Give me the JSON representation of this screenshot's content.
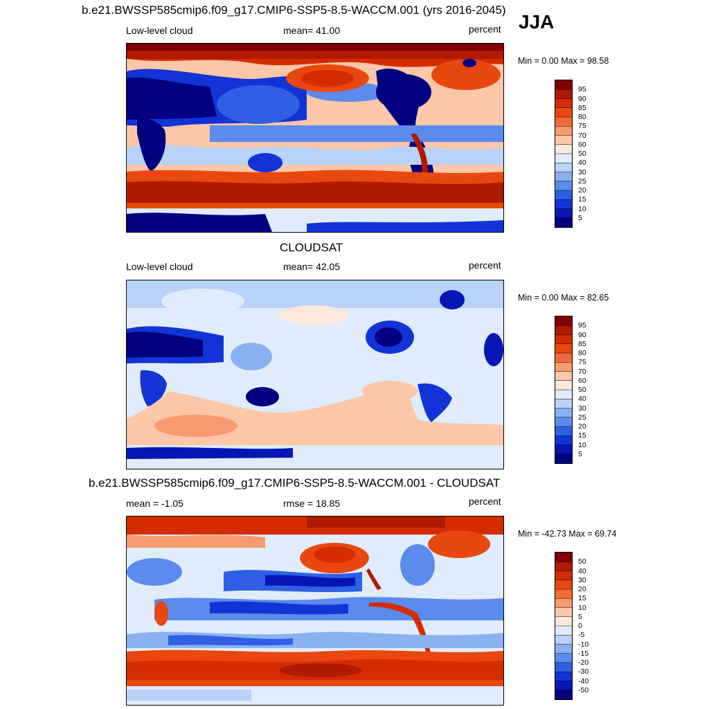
{
  "season_label": "JJA",
  "panels": [
    {
      "title": "b.e21.BWSSP585cmip6.f09_g17.CMIP6-SSP5-8.5-WACCM.001 (yrs 2016-2045)",
      "left_label": "Low-level cloud",
      "center_label": "mean=  41.00",
      "units": "percent",
      "minmax": "Min =   0.00 Max =  98.58"
    },
    {
      "title": "CLOUDSAT",
      "left_label": "Low-level cloud",
      "center_label": "mean=  42.05",
      "units": "percent",
      "minmax": "Min =   0.00 Max =  82.65"
    },
    {
      "title": "b.e21.BWSSP585cmip6.f09_g17.CMIP6-SSP5-8.5-WACCM.001 - CLOUDSAT",
      "left_label": "mean =  -1.05",
      "center_label": "rmse =  18.85",
      "units": "percent",
      "minmax": "Min = -42.73 Max =  69.74"
    }
  ],
  "colorbar_abs": {
    "labels": [
      "95",
      "90",
      "85",
      "80",
      "75",
      "70",
      "60",
      "50",
      "40",
      "30",
      "25",
      "20",
      "15",
      "10",
      "5"
    ],
    "colors": [
      "#800000",
      "#b01a00",
      "#d42c00",
      "#e8480f",
      "#f36a36",
      "#f89a70",
      "#fcc6a8",
      "#fde8dc",
      "#e0ecfb",
      "#b8d2f8",
      "#8ab2f2",
      "#5b8bec",
      "#2f5fe4",
      "#1234d6",
      "#0616b6",
      "#000080"
    ]
  },
  "colorbar_diff": {
    "labels": [
      "50",
      "40",
      "30",
      "20",
      "15",
      "10",
      "5",
      "0",
      "-5",
      "-10",
      "-15",
      "-20",
      "-30",
      "-40",
      "-50"
    ],
    "colors": [
      "#800000",
      "#b01a00",
      "#d42c00",
      "#e8480f",
      "#f36a36",
      "#f89a70",
      "#fcc6a8",
      "#fde8dc",
      "#e0ecfb",
      "#b8d2f8",
      "#8ab2f2",
      "#5b8bec",
      "#2f5fe4",
      "#1234d6",
      "#0616b6",
      "#000080"
    ]
  }
}
